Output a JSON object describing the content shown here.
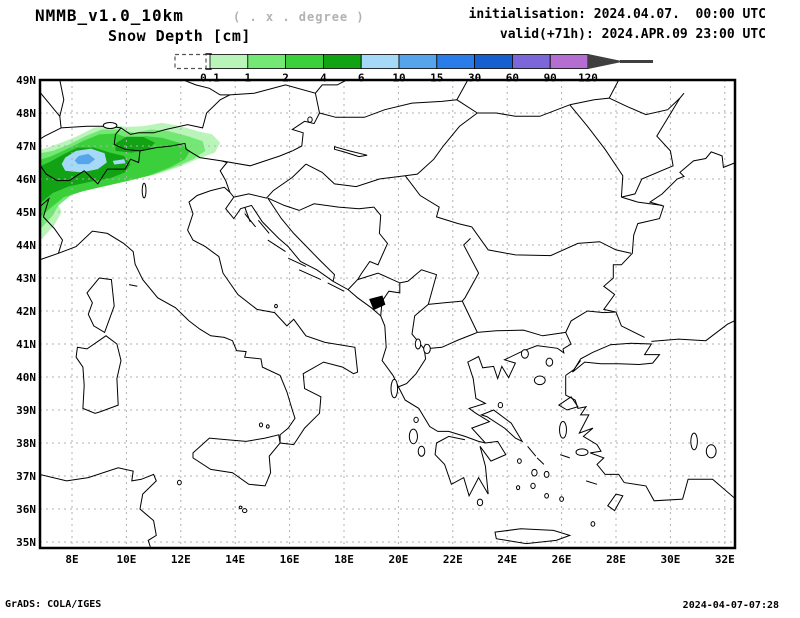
{
  "header": {
    "model_title": "NMMB_v1.0_10km",
    "model_subtitle": "( . x . degree )",
    "field_title": "Snow Depth [cm]",
    "init_line": "initialisation: 2024.04.07.  00:00 UTC",
    "valid_line": "valid(+71h): 2024.APR.09 23:00 UTC"
  },
  "footer": {
    "credit": "GrADS: COLA/IGES",
    "timestamp": "2024-04-07-07:28"
  },
  "colorbar": {
    "tick_labels": [
      "0.1",
      "1",
      "2",
      "4",
      "6",
      "10",
      "15",
      "30",
      "60",
      "90",
      "120"
    ],
    "segment_colors": [
      "#b9f4b9",
      "#74e874",
      "#3bcf3b",
      "#12a314",
      "#a6d8f7",
      "#56a5ec",
      "#2a7ce8",
      "#155fd1",
      "#7b67d8",
      "#b46ed2"
    ],
    "above_color": "#3f3f3f",
    "below_box": "dashed-white (less than 0.1)"
  },
  "map": {
    "lat_labels": [
      "49N",
      "48N",
      "47N",
      "46N",
      "45N",
      "44N",
      "43N",
      "42N",
      "41N",
      "40N",
      "39N",
      "38N",
      "37N",
      "36N",
      "35N"
    ],
    "lon_labels": [
      "8E",
      "10E",
      "12E",
      "14E",
      "16E",
      "18E",
      "20E",
      "22E",
      "24E",
      "26E",
      "28E",
      "30E",
      "32E"
    ],
    "grid_color": "#b0b0b0",
    "coast_color": "#000000"
  },
  "chart_data": {
    "type": "filled_contour_map",
    "title": "Snow Depth [cm]",
    "model": "NMMB_v1.0_10km",
    "init_time": "2024.04.07. 00:00 UTC",
    "valid_time": "2024.APR.09 23:00 UTC",
    "lead_hours": 71,
    "units": "cm",
    "levels": [
      0.1,
      1,
      2,
      4,
      6,
      10,
      15,
      30,
      60,
      90,
      120
    ],
    "extent": {
      "lon_min": 6.8,
      "lon_max": 32.4,
      "lat_min": 34.8,
      "lat_max": 49.0
    },
    "grid": "dashed, 1 deg latitude / 2 deg longitude",
    "legend_position": "top, horizontal colorbar",
    "field_summary": "Snow depth only over the Alpine arc; maximum 10-15 cm centred near 8.5E 46.6N, shading extends northeast to ~13.5E 47.5N and southwest off the map edge near 44.5N",
    "contours": [
      {
        "level": 0.1,
        "color": "#b9f4b9",
        "polygon": [
          [
            6.8,
            44.1
          ],
          [
            7.35,
            44.6
          ],
          [
            7.62,
            45.0
          ],
          [
            7.45,
            45.3
          ],
          [
            8.0,
            45.55
          ],
          [
            8.7,
            45.75
          ],
          [
            9.5,
            45.9
          ],
          [
            10.3,
            46.0
          ],
          [
            11.1,
            46.15
          ],
          [
            11.9,
            46.35
          ],
          [
            12.6,
            46.6
          ],
          [
            13.25,
            46.8
          ],
          [
            13.45,
            47.1
          ],
          [
            13.15,
            47.35
          ],
          [
            12.6,
            47.45
          ],
          [
            12.0,
            47.6
          ],
          [
            11.3,
            47.7
          ],
          [
            10.6,
            47.6
          ],
          [
            10.0,
            47.58
          ],
          [
            9.4,
            47.65
          ],
          [
            8.8,
            47.55
          ],
          [
            8.2,
            47.3
          ],
          [
            7.6,
            47.1
          ],
          [
            7.1,
            46.95
          ],
          [
            6.8,
            46.88
          ]
        ]
      },
      {
        "level": 1,
        "color": "#74e874",
        "polygon": [
          [
            6.8,
            44.45
          ],
          [
            7.3,
            44.9
          ],
          [
            7.5,
            45.2
          ],
          [
            7.95,
            45.5
          ],
          [
            8.6,
            45.7
          ],
          [
            9.4,
            45.85
          ],
          [
            10.2,
            45.97
          ],
          [
            11.0,
            46.13
          ],
          [
            11.8,
            46.37
          ],
          [
            12.45,
            46.6
          ],
          [
            12.9,
            46.85
          ],
          [
            12.8,
            47.15
          ],
          [
            12.25,
            47.3
          ],
          [
            11.55,
            47.45
          ],
          [
            10.9,
            47.5
          ],
          [
            10.3,
            47.4
          ],
          [
            9.7,
            47.5
          ],
          [
            9.1,
            47.5
          ],
          [
            8.5,
            47.3
          ],
          [
            7.9,
            47.05
          ],
          [
            7.3,
            46.85
          ],
          [
            6.8,
            46.78
          ]
        ]
      },
      {
        "level": 2,
        "color": "#3bcf3b",
        "polygon": [
          [
            6.8,
            44.82
          ],
          [
            7.25,
            45.15
          ],
          [
            7.7,
            45.45
          ],
          [
            8.4,
            45.63
          ],
          [
            9.2,
            45.78
          ],
          [
            10.0,
            45.93
          ],
          [
            10.8,
            46.1
          ],
          [
            11.6,
            46.35
          ],
          [
            12.15,
            46.6
          ],
          [
            12.35,
            46.85
          ],
          [
            11.95,
            47.1
          ],
          [
            11.3,
            47.25
          ],
          [
            10.7,
            47.3
          ],
          [
            10.15,
            47.22
          ],
          [
            9.6,
            47.38
          ],
          [
            9.0,
            47.35
          ],
          [
            8.4,
            47.15
          ],
          [
            7.8,
            46.9
          ],
          [
            7.2,
            46.68
          ],
          [
            6.8,
            46.58
          ]
        ]
      },
      {
        "level": 4,
        "color": "#12a314",
        "polygon": [
          [
            6.8,
            45.25
          ],
          [
            7.3,
            45.58
          ],
          [
            7.9,
            45.78
          ],
          [
            8.7,
            45.92
          ],
          [
            9.4,
            46.02
          ],
          [
            9.95,
            46.2
          ],
          [
            10.15,
            46.45
          ],
          [
            9.9,
            46.7
          ],
          [
            9.4,
            46.8
          ],
          [
            8.8,
            46.95
          ],
          [
            8.2,
            46.95
          ],
          [
            7.7,
            46.75
          ],
          [
            7.2,
            46.52
          ],
          [
            6.8,
            46.38
          ]
        ]
      },
      {
        "level": 4,
        "color": "#12a314",
        "polygon": [
          [
            9.6,
            46.85
          ],
          [
            10.2,
            46.8
          ],
          [
            10.8,
            46.9
          ],
          [
            11.05,
            47.1
          ],
          [
            10.6,
            47.28
          ],
          [
            10.0,
            47.28
          ],
          [
            9.6,
            47.08
          ]
        ]
      },
      {
        "level": 6,
        "color": "#a6d8f7",
        "polygon": [
          [
            7.75,
            46.25
          ],
          [
            8.35,
            46.2
          ],
          [
            8.95,
            46.3
          ],
          [
            9.28,
            46.5
          ],
          [
            9.2,
            46.78
          ],
          [
            8.7,
            46.92
          ],
          [
            8.15,
            46.85
          ],
          [
            7.75,
            46.65
          ],
          [
            7.62,
            46.45
          ]
        ]
      },
      {
        "level": 6,
        "color": "#a6d8f7",
        "polygon": [
          [
            9.5,
            46.55
          ],
          [
            9.92,
            46.6
          ],
          [
            9.97,
            46.48
          ],
          [
            9.55,
            46.44
          ]
        ]
      },
      {
        "level": 10,
        "color": "#56a5ec",
        "polygon": [
          [
            8.22,
            46.45
          ],
          [
            8.62,
            46.45
          ],
          [
            8.85,
            46.6
          ],
          [
            8.6,
            46.76
          ],
          [
            8.25,
            46.7
          ],
          [
            8.1,
            46.56
          ]
        ]
      }
    ]
  }
}
